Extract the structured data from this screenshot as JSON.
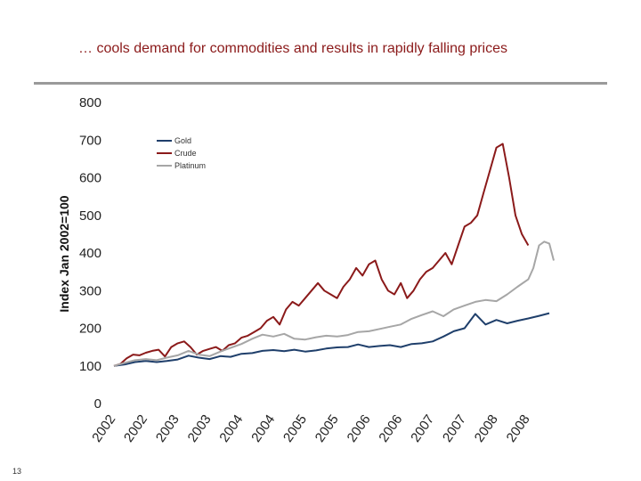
{
  "slide": {
    "title": "… cools demand for commodities and results in rapidly falling prices",
    "page_number": "13"
  },
  "chart_data": {
    "type": "line",
    "title": "",
    "xlabel": "",
    "ylabel": "Index Jan 2002=100",
    "ylim": [
      0,
      800
    ],
    "yticks": [
      0,
      100,
      200,
      300,
      400,
      500,
      600,
      700,
      800
    ],
    "xlim": [
      2002.0,
      2008.9
    ],
    "xticks": [
      {
        "label": "2002",
        "x": 2002.0
      },
      {
        "label": "2002",
        "x": 2002.5
      },
      {
        "label": "2003",
        "x": 2003.0
      },
      {
        "label": "2003",
        "x": 2003.5
      },
      {
        "label": "2004",
        "x": 2004.0
      },
      {
        "label": "2004",
        "x": 2004.5
      },
      {
        "label": "2005",
        "x": 2005.0
      },
      {
        "label": "2005",
        "x": 2005.5
      },
      {
        "label": "2006",
        "x": 2006.0
      },
      {
        "label": "2006",
        "x": 2006.5
      },
      {
        "label": "2007",
        "x": 2007.0
      },
      {
        "label": "2007",
        "x": 2007.5
      },
      {
        "label": "2008",
        "x": 2008.0
      },
      {
        "label": "2008",
        "x": 2008.5
      }
    ],
    "grid": false,
    "legend_position": "top-left",
    "series": [
      {
        "name": "Gold",
        "color": "#1f3f6b",
        "points": [
          [
            2002.0,
            100
          ],
          [
            2002.17,
            104
          ],
          [
            2002.33,
            110
          ],
          [
            2002.5,
            113
          ],
          [
            2002.67,
            110
          ],
          [
            2002.83,
            113
          ],
          [
            2003.0,
            117
          ],
          [
            2003.17,
            127
          ],
          [
            2003.33,
            122
          ],
          [
            2003.5,
            118
          ],
          [
            2003.67,
            126
          ],
          [
            2003.83,
            124
          ],
          [
            2004.0,
            132
          ],
          [
            2004.17,
            134
          ],
          [
            2004.33,
            140
          ],
          [
            2004.5,
            142
          ],
          [
            2004.67,
            139
          ],
          [
            2004.83,
            143
          ],
          [
            2005.0,
            138
          ],
          [
            2005.17,
            141
          ],
          [
            2005.33,
            146
          ],
          [
            2005.5,
            149
          ],
          [
            2005.67,
            150
          ],
          [
            2005.83,
            157
          ],
          [
            2006.0,
            150
          ],
          [
            2006.17,
            153
          ],
          [
            2006.33,
            155
          ],
          [
            2006.5,
            150
          ],
          [
            2006.67,
            158
          ],
          [
            2006.83,
            160
          ],
          [
            2007.0,
            165
          ],
          [
            2007.17,
            178
          ],
          [
            2007.33,
            192
          ],
          [
            2007.5,
            200
          ],
          [
            2007.67,
            238
          ],
          [
            2007.83,
            210
          ],
          [
            2008.0,
            222
          ],
          [
            2008.17,
            213
          ],
          [
            2008.33,
            220
          ],
          [
            2008.5,
            226
          ],
          [
            2008.67,
            233
          ],
          [
            2008.83,
            240
          ]
        ]
      },
      {
        "name": "Crude",
        "color": "#8b1a1a",
        "points": [
          [
            2002.0,
            100
          ],
          [
            2002.1,
            105
          ],
          [
            2002.2,
            120
          ],
          [
            2002.3,
            130
          ],
          [
            2002.4,
            128
          ],
          [
            2002.5,
            135
          ],
          [
            2002.6,
            140
          ],
          [
            2002.7,
            143
          ],
          [
            2002.8,
            125
          ],
          [
            2002.9,
            150
          ],
          [
            2003.0,
            160
          ],
          [
            2003.1,
            165
          ],
          [
            2003.2,
            150
          ],
          [
            2003.3,
            130
          ],
          [
            2003.4,
            140
          ],
          [
            2003.5,
            145
          ],
          [
            2003.6,
            150
          ],
          [
            2003.7,
            140
          ],
          [
            2003.8,
            155
          ],
          [
            2003.9,
            160
          ],
          [
            2004.0,
            175
          ],
          [
            2004.1,
            180
          ],
          [
            2004.2,
            190
          ],
          [
            2004.3,
            200
          ],
          [
            2004.4,
            220
          ],
          [
            2004.5,
            230
          ],
          [
            2004.6,
            210
          ],
          [
            2004.7,
            250
          ],
          [
            2004.8,
            270
          ],
          [
            2004.9,
            260
          ],
          [
            2005.0,
            280
          ],
          [
            2005.1,
            300
          ],
          [
            2005.2,
            320
          ],
          [
            2005.3,
            300
          ],
          [
            2005.4,
            290
          ],
          [
            2005.5,
            280
          ],
          [
            2005.6,
            310
          ],
          [
            2005.7,
            330
          ],
          [
            2005.8,
            360
          ],
          [
            2005.9,
            340
          ],
          [
            2006.0,
            370
          ],
          [
            2006.1,
            380
          ],
          [
            2006.2,
            330
          ],
          [
            2006.3,
            300
          ],
          [
            2006.4,
            290
          ],
          [
            2006.5,
            320
          ],
          [
            2006.6,
            280
          ],
          [
            2006.7,
            300
          ],
          [
            2006.8,
            330
          ],
          [
            2006.9,
            350
          ],
          [
            2007.0,
            360
          ],
          [
            2007.1,
            380
          ],
          [
            2007.2,
            400
          ],
          [
            2007.3,
            370
          ],
          [
            2007.4,
            420
          ],
          [
            2007.5,
            470
          ],
          [
            2007.6,
            480
          ],
          [
            2007.7,
            500
          ],
          [
            2007.8,
            560
          ],
          [
            2007.9,
            620
          ],
          [
            2008.0,
            680
          ],
          [
            2008.1,
            690
          ],
          [
            2008.2,
            600
          ],
          [
            2008.3,
            500
          ],
          [
            2008.4,
            450
          ],
          [
            2008.5,
            420
          ]
        ]
      },
      {
        "name": "Platinum",
        "color": "#a6a6a6",
        "points": [
          [
            2002.0,
            100
          ],
          [
            2002.17,
            108
          ],
          [
            2002.33,
            115
          ],
          [
            2002.5,
            118
          ],
          [
            2002.67,
            115
          ],
          [
            2002.83,
            122
          ],
          [
            2003.0,
            128
          ],
          [
            2003.17,
            140
          ],
          [
            2003.33,
            130
          ],
          [
            2003.5,
            126
          ],
          [
            2003.67,
            138
          ],
          [
            2003.83,
            148
          ],
          [
            2004.0,
            158
          ],
          [
            2004.17,
            172
          ],
          [
            2004.33,
            183
          ],
          [
            2004.5,
            178
          ],
          [
            2004.67,
            185
          ],
          [
            2004.83,
            172
          ],
          [
            2005.0,
            170
          ],
          [
            2005.17,
            176
          ],
          [
            2005.33,
            180
          ],
          [
            2005.5,
            178
          ],
          [
            2005.67,
            182
          ],
          [
            2005.83,
            190
          ],
          [
            2006.0,
            192
          ],
          [
            2006.17,
            198
          ],
          [
            2006.33,
            204
          ],
          [
            2006.5,
            210
          ],
          [
            2006.67,
            225
          ],
          [
            2006.83,
            235
          ],
          [
            2007.0,
            245
          ],
          [
            2007.17,
            232
          ],
          [
            2007.33,
            250
          ],
          [
            2007.5,
            260
          ],
          [
            2007.67,
            270
          ],
          [
            2007.83,
            275
          ],
          [
            2008.0,
            272
          ],
          [
            2008.17,
            290
          ],
          [
            2008.33,
            310
          ],
          [
            2008.5,
            330
          ],
          [
            2008.58,
            360
          ],
          [
            2008.67,
            420
          ],
          [
            2008.75,
            430
          ],
          [
            2008.83,
            425
          ],
          [
            2008.9,
            380
          ]
        ]
      }
    ]
  }
}
